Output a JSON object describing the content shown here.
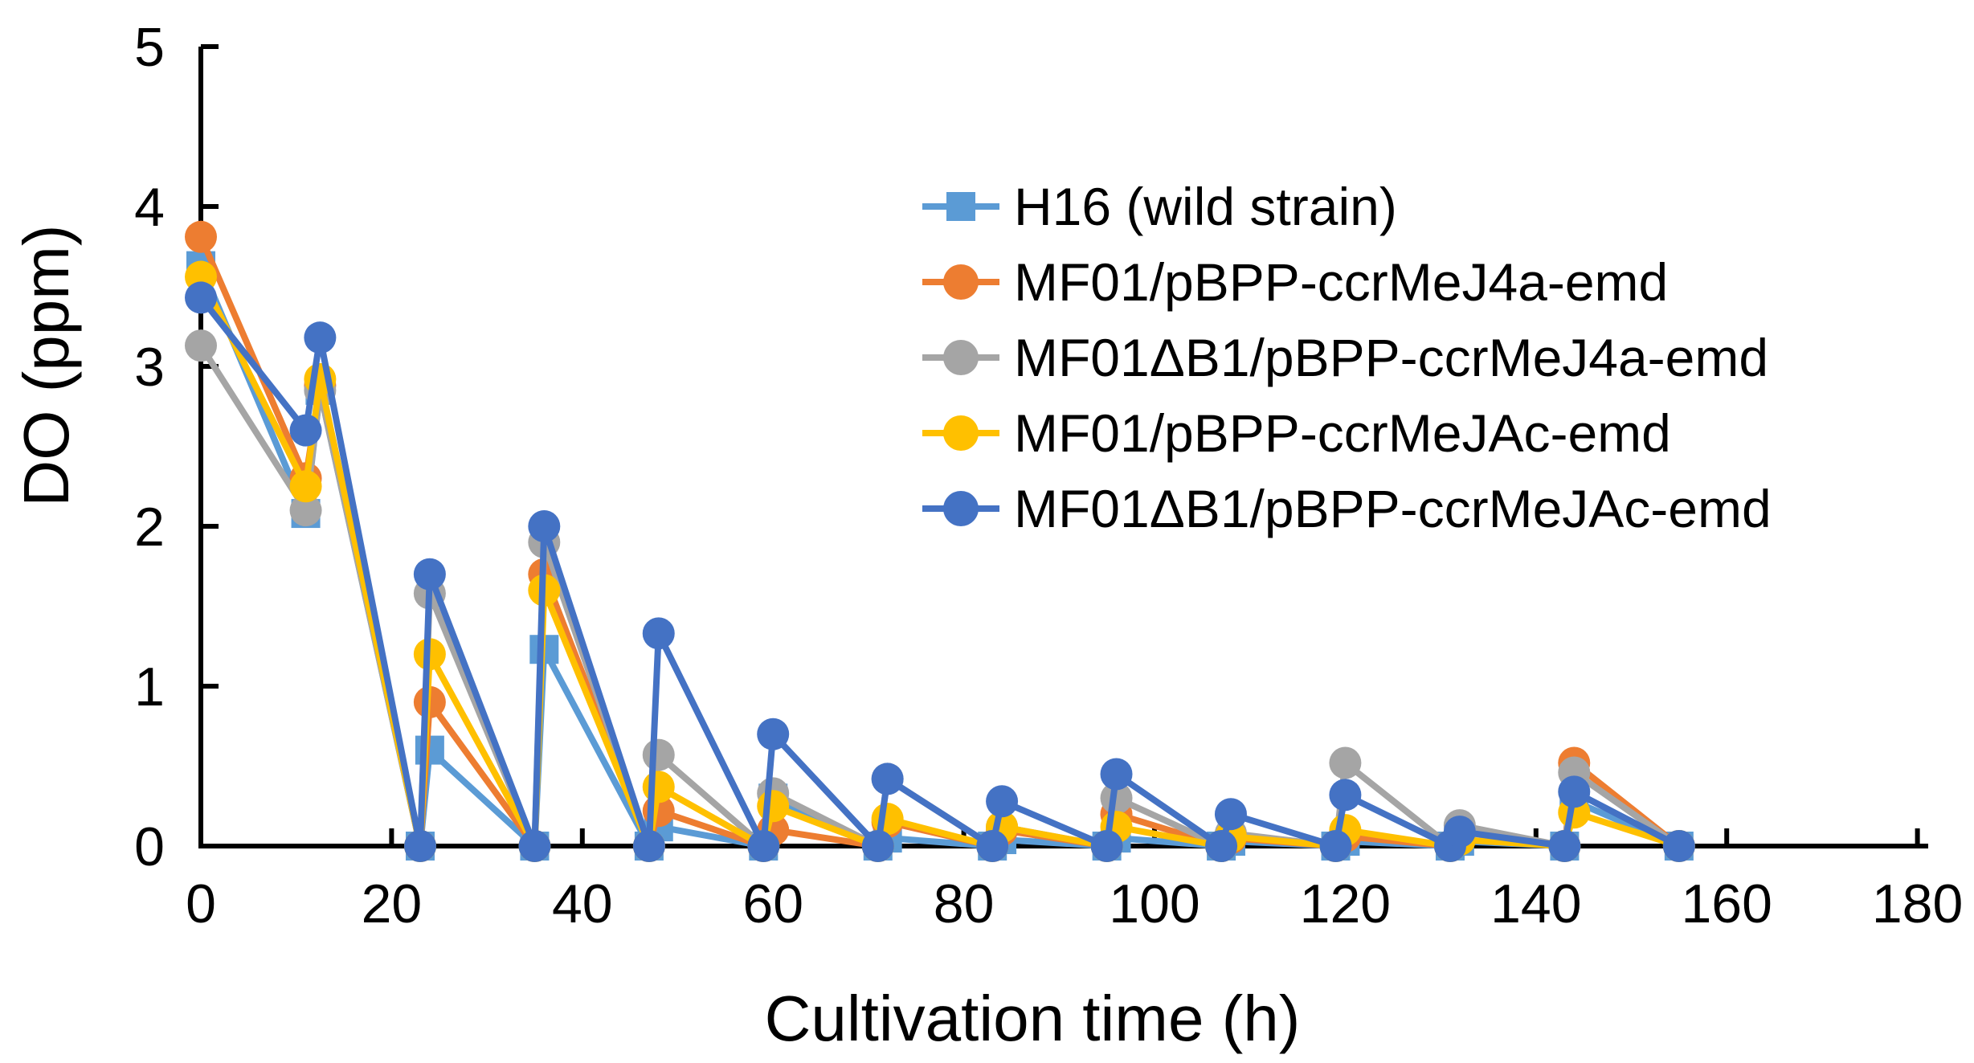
{
  "figure": {
    "background": "#ffffff",
    "axis_color": "#000000",
    "text_color": "#000000"
  },
  "chart_data": {
    "type": "line",
    "title": "",
    "xlabel": "Cultivation time (h)",
    "ylabel": "DO (ppm)",
    "xlim": [
      0,
      180
    ],
    "ylim": [
      0,
      5
    ],
    "x_ticks": [
      0,
      20,
      40,
      60,
      80,
      100,
      120,
      140,
      160,
      180
    ],
    "y_ticks": [
      0,
      1,
      2,
      3,
      4,
      5
    ],
    "grid": false,
    "legend_position": "upper-right-inside",
    "x": [
      0,
      11,
      12.5,
      23,
      24,
      35,
      36,
      47,
      48,
      59,
      60,
      71,
      72,
      83,
      84,
      95,
      96,
      107,
      108,
      119,
      120,
      131,
      132,
      143,
      144,
      155
    ],
    "series": [
      {
        "name": "H16 (wild strain)",
        "color": "#5B9BD5",
        "marker": "square",
        "values": [
          3.63,
          2.08,
          2.85,
          0,
          0.6,
          0,
          1.23,
          0,
          0.12,
          0,
          0.3,
          0,
          0.05,
          0,
          0.04,
          0,
          0.05,
          0,
          0.03,
          0,
          0.03,
          0,
          0.03,
          0,
          0.28,
          0
        ]
      },
      {
        "name": "MF01/pBPP-ccrMeJ4a-emd",
        "color": "#ED7D31",
        "marker": "circle",
        "values": [
          3.81,
          2.3,
          2.88,
          0,
          0.9,
          0,
          1.7,
          0,
          0.22,
          0,
          0.1,
          0,
          0.15,
          0,
          0.1,
          0,
          0.2,
          0,
          0.05,
          0,
          0.06,
          0,
          0.04,
          0,
          0.52,
          0
        ]
      },
      {
        "name": "MF01ΔB1/pBPP-ccrMeJ4a-emd",
        "color": "#A5A5A5",
        "marker": "circle",
        "values": [
          3.13,
          2.1,
          2.85,
          0,
          1.58,
          0,
          1.9,
          0,
          0.57,
          0,
          0.33,
          0,
          0.42,
          0,
          0.12,
          0,
          0.3,
          0,
          0.08,
          0,
          0.52,
          0,
          0.13,
          0,
          0.46,
          0
        ]
      },
      {
        "name": "MF01/pBPP-ccrMeJAc-emd",
        "color": "#FFC000",
        "marker": "circle",
        "values": [
          3.56,
          2.25,
          2.92,
          0,
          1.2,
          0,
          1.6,
          0,
          0.37,
          0,
          0.25,
          0,
          0.17,
          0,
          0.12,
          0,
          0.12,
          0,
          0.06,
          0,
          0.1,
          0,
          0.04,
          0,
          0.21,
          0
        ]
      },
      {
        "name": "MF01ΔB1/pBPP-ccrMeJAc-emd",
        "color": "#4472C4",
        "marker": "circle",
        "values": [
          3.43,
          2.6,
          3.18,
          0,
          1.7,
          0,
          2.0,
          0,
          1.33,
          0,
          0.7,
          0,
          0.42,
          0,
          0.28,
          0,
          0.45,
          0,
          0.2,
          0,
          0.32,
          0,
          0.09,
          0,
          0.34,
          0
        ]
      }
    ]
  }
}
